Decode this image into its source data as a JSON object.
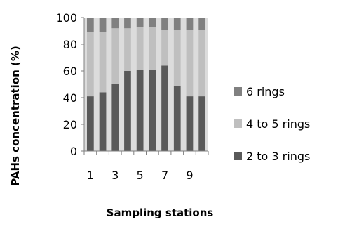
{
  "chart_data": {
    "type": "bar",
    "stacked": true,
    "percent": true,
    "categories": [
      "1",
      "2",
      "3",
      "4",
      "5",
      "6",
      "7",
      "8",
      "9",
      "10"
    ],
    "x_tick_labels": [
      "1",
      "3",
      "5",
      "7",
      "9"
    ],
    "series": [
      {
        "name": "2 to 3 rings",
        "color": "#595959",
        "values": [
          41,
          44,
          50,
          60,
          61,
          61,
          64,
          49,
          41,
          41
        ]
      },
      {
        "name": "4 to 5 rings",
        "color": "#bfbfbf",
        "values": [
          48,
          45,
          42,
          32,
          32,
          32,
          27,
          42,
          50,
          50
        ]
      },
      {
        "name": "6 rings",
        "color": "#808080",
        "values": [
          11,
          11,
          8,
          8,
          7,
          7,
          9,
          9,
          9,
          9
        ]
      }
    ],
    "ylim": [
      0,
      100
    ],
    "y_ticks": [
      0,
      20,
      40,
      60,
      80,
      100
    ],
    "xlabel": "Sampling stations",
    "ylabel": "PAHs concentration (%)",
    "legend_position": "right",
    "legend_order": [
      "6 rings",
      "4 to 5 rings",
      "2 to 3 rings"
    ],
    "plot_background": "#dcdcdc",
    "grid": false
  }
}
